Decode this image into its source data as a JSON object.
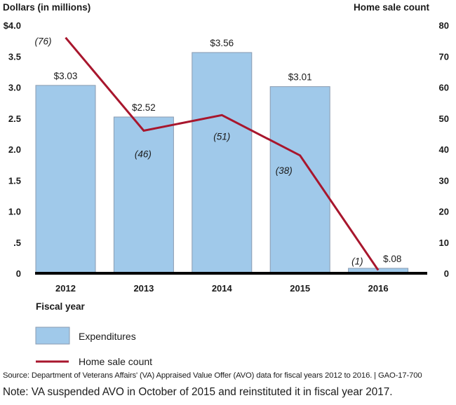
{
  "chart_data": {
    "type": "bar",
    "title": "",
    "categories": [
      "2012",
      "2013",
      "2014",
      "2015",
      "2016"
    ],
    "xlabel": "Fiscal year",
    "ylabel": "Dollars (in millions)",
    "y2label": "Home sale count",
    "ylim": [
      0,
      4.0
    ],
    "y2lim": [
      0,
      80
    ],
    "yticks": [
      "0",
      ".5",
      "1.0",
      "1.5",
      "2.0",
      "2.5",
      "3.0",
      "3.5",
      "$4.0"
    ],
    "yticks_values": [
      0,
      0.5,
      1.0,
      1.5,
      2.0,
      2.5,
      3.0,
      3.5,
      4.0
    ],
    "y2ticks": [
      "0",
      "10",
      "20",
      "30",
      "40",
      "50",
      "60",
      "70",
      "80"
    ],
    "y2ticks_values": [
      0,
      10,
      20,
      30,
      40,
      50,
      60,
      70,
      80
    ],
    "grid": false,
    "legend_position": "bottom-left",
    "series": [
      {
        "name": "Expenditures",
        "type": "bar",
        "axis": "left",
        "color": "#a0c9ea",
        "values": [
          3.03,
          2.52,
          3.56,
          3.01,
          0.08
        ],
        "labels": [
          "$3.03",
          "$2.52",
          "$3.56",
          "$3.01",
          "$.08"
        ]
      },
      {
        "name": "Home sale count",
        "type": "line",
        "axis": "right",
        "color": "#a8162d",
        "values": [
          76,
          46,
          51,
          38,
          1
        ],
        "labels": [
          "(76)",
          "(46)",
          "(51)",
          "(38)",
          "(1)"
        ]
      }
    ]
  },
  "source": "Source: Department of Veterans Affairs' (VA) Appraised Value Offer (AVO) data for fiscal years 2012 to 2016. | GAO-17-700",
  "note": "Note: VA suspended AVO in October of 2015 and reinstituted it in fiscal year 2017."
}
